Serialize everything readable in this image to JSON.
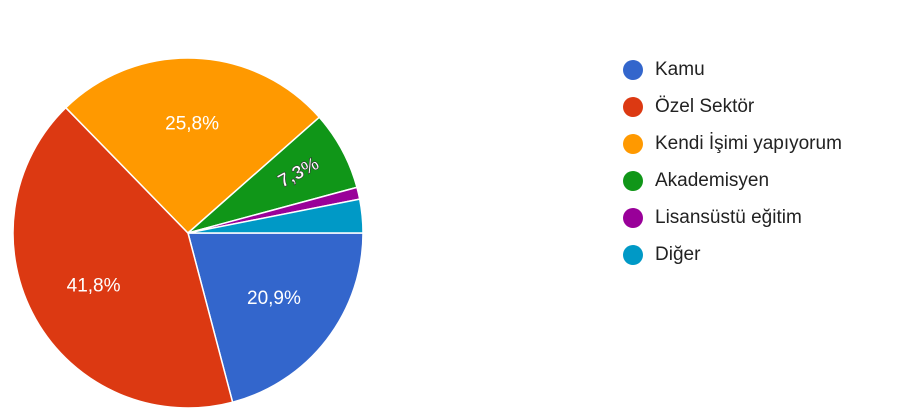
{
  "chart_data": {
    "type": "pie",
    "categories": [
      "Kamu",
      "Özel Sektör",
      "Kendi İşimi yapıyorum",
      "Akademisyen",
      "Lisansüstü eğitim",
      "Diğer"
    ],
    "values": [
      20.9,
      41.8,
      25.8,
      7.3,
      1.1,
      3.1
    ],
    "value_labels": [
      "20,9%",
      "41,8%",
      "25,8%",
      "7,3%",
      null,
      null
    ],
    "colors": [
      "#3366cc",
      "#dc3912",
      "#ff9900",
      "#109618",
      "#990099",
      "#0099c6"
    ],
    "legend": "right"
  }
}
